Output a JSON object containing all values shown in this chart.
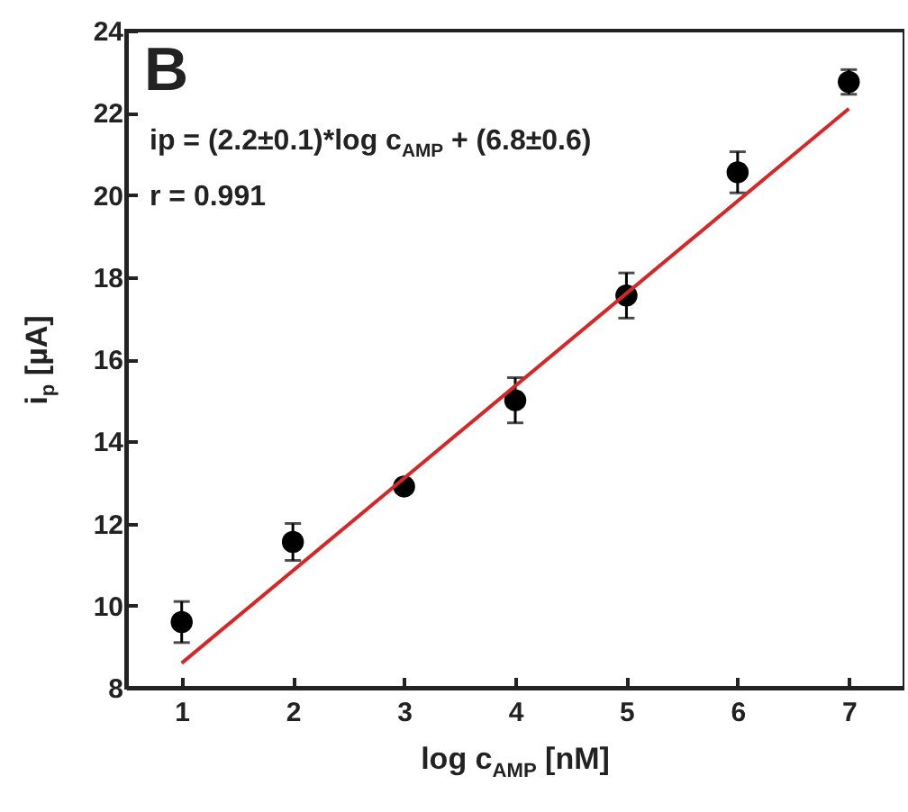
{
  "chart_data": {
    "type": "scatter",
    "xlabel": "log c$_{AMP}$ [nM]",
    "ylabel": "i$_{p}$ [µA]",
    "annotations": [
      "B",
      "ip = (2.2±0.1)*log c$_{AMP}$ + (6.8±0.6)",
      "r = 0.991"
    ],
    "xlim": [
      0.5,
      7.5
    ],
    "xticks": [
      1,
      2,
      3,
      4,
      5,
      6,
      7
    ],
    "ylim": [
      8,
      24
    ],
    "yticks": [
      8,
      10,
      12,
      14,
      16,
      18,
      20,
      22,
      24
    ],
    "grid": false,
    "series": [
      {
        "marker": "circle",
        "color": "#000000",
        "x": [
          1,
          2,
          3,
          4,
          5,
          6,
          7
        ],
        "values": [
          9.6,
          11.55,
          12.9,
          15.0,
          17.55,
          20.55,
          22.75
        ],
        "errors": [
          0.5,
          0.45,
          0.15,
          0.55,
          0.55,
          0.5,
          0.3
        ]
      },
      {
        "type": "line",
        "color": "#d62728",
        "x": [
          1,
          7
        ],
        "values": [
          8.6,
          22.1
        ],
        "line_style": "solid"
      }
    ]
  }
}
